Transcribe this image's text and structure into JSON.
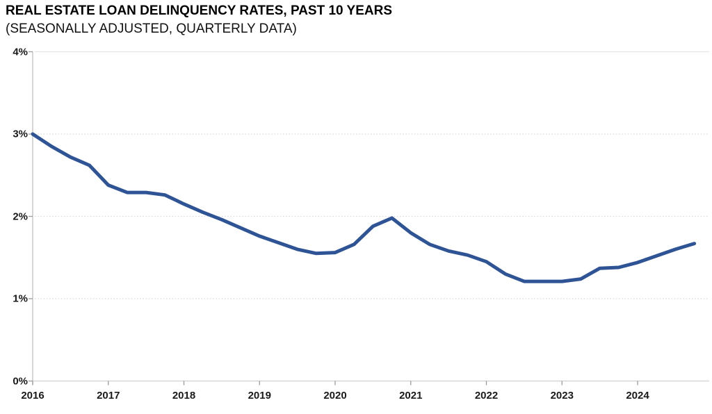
{
  "header": {
    "title": "REAL ESTATE LOAN DELINQUENCY RATES, PAST 10 YEARS",
    "subtitle": "(SEASONALLY ADJUSTED, QUARTERLY DATA)"
  },
  "chart_data": {
    "type": "line",
    "title": "REAL ESTATE LOAN DELINQUENCY RATES, PAST 10 YEARS",
    "subtitle": "(SEASONALLY ADJUSTED, QUARTERLY DATA)",
    "x_tick_labels": [
      "2016",
      "2017",
      "2018",
      "2019",
      "2020",
      "2021",
      "2022",
      "2023",
      "2024"
    ],
    "y_tick_labels": [
      "0%",
      "1%",
      "2%",
      "3%",
      "4%"
    ],
    "ylim": [
      0,
      4
    ],
    "y_unit": "percent",
    "grid": "horizontal-dotted",
    "legend_position": "none",
    "line_color": "#2F5496",
    "categories": [
      "2016 Q1",
      "2016 Q2",
      "2016 Q3",
      "2016 Q4",
      "2017 Q1",
      "2017 Q2",
      "2017 Q3",
      "2017 Q4",
      "2018 Q1",
      "2018 Q2",
      "2018 Q3",
      "2018 Q4",
      "2019 Q1",
      "2019 Q2",
      "2019 Q3",
      "2019 Q4",
      "2020 Q1",
      "2020 Q2",
      "2020 Q3",
      "2020 Q4",
      "2021 Q1",
      "2021 Q2",
      "2021 Q3",
      "2021 Q4",
      "2022 Q1",
      "2022 Q2",
      "2022 Q3",
      "2022 Q4",
      "2023 Q1",
      "2023 Q2",
      "2023 Q3",
      "2023 Q4",
      "2024 Q1",
      "2024 Q2",
      "2024 Q3",
      "2024 Q4"
    ],
    "series": [
      {
        "name": "Real estate loan delinquency rate",
        "values": [
          3.0,
          2.85,
          2.72,
          2.62,
          2.38,
          2.29,
          2.29,
          2.26,
          2.15,
          2.05,
          1.96,
          1.86,
          1.76,
          1.68,
          1.6,
          1.55,
          1.56,
          1.66,
          1.88,
          1.98,
          1.8,
          1.66,
          1.58,
          1.53,
          1.45,
          1.3,
          1.21,
          1.21,
          1.21,
          1.24,
          1.37,
          1.38,
          1.44,
          1.52,
          1.6,
          1.67
        ]
      }
    ]
  },
  "colors": {
    "line": "#2F5496",
    "gridline": "#D9D9D9",
    "top_gridline": "#E4E4E4",
    "baseline": "#CFCFCF",
    "axis": "#BFBFBF",
    "tick": "#9A9A9A",
    "label_text": "#1a1a1a",
    "background": "#FFFFFF"
  }
}
